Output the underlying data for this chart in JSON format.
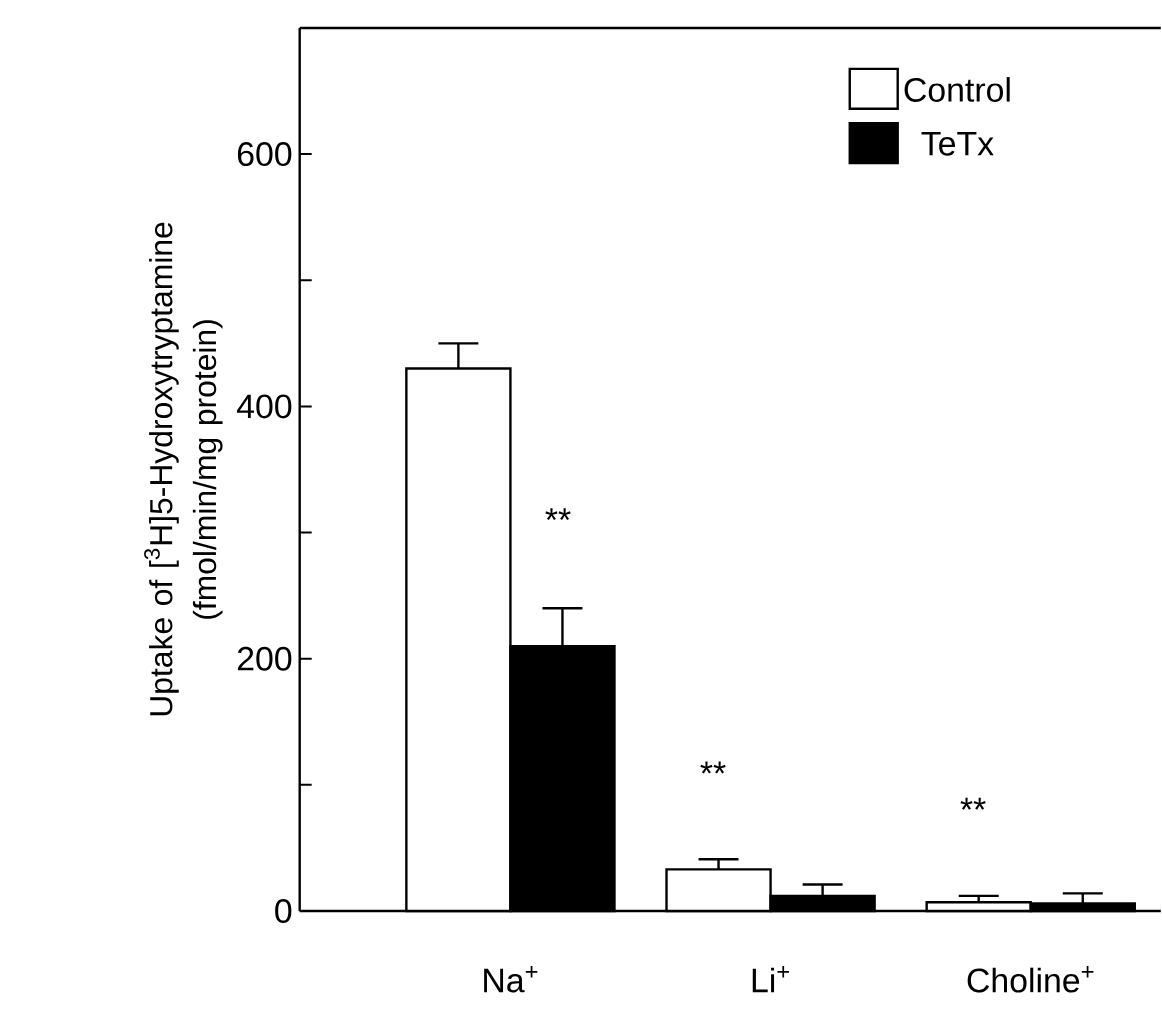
{
  "chart_data": {
    "type": "bar",
    "ylabel": "Uptake of [$^{3}$H]5-Hydroxytryptamine (fmol/min/mg protein)",
    "categories": [
      "Na$^{+}$",
      "Li$^{+}$",
      "Choline$^{+}$"
    ],
    "series": [
      {
        "name": "Control",
        "color": "#ffffff",
        "values": [
          430,
          33,
          7
        ],
        "errors": [
          20,
          8,
          5
        ]
      },
      {
        "name": "TeTx",
        "color": "#000000",
        "values": [
          210,
          12,
          6
        ],
        "errors": [
          30,
          9,
          8
        ]
      }
    ],
    "ylim": [
      0,
      700
    ],
    "yticks": [
      0,
      {
        "value": 100,
        "label": null
      },
      200,
      {
        "value": 300,
        "label": null
      },
      400,
      {
        "value": 500,
        "label": null
      },
      600
    ],
    "annotations": [
      "**",
      "**",
      "**"
    ],
    "legend": "top right",
    "grid": false
  }
}
